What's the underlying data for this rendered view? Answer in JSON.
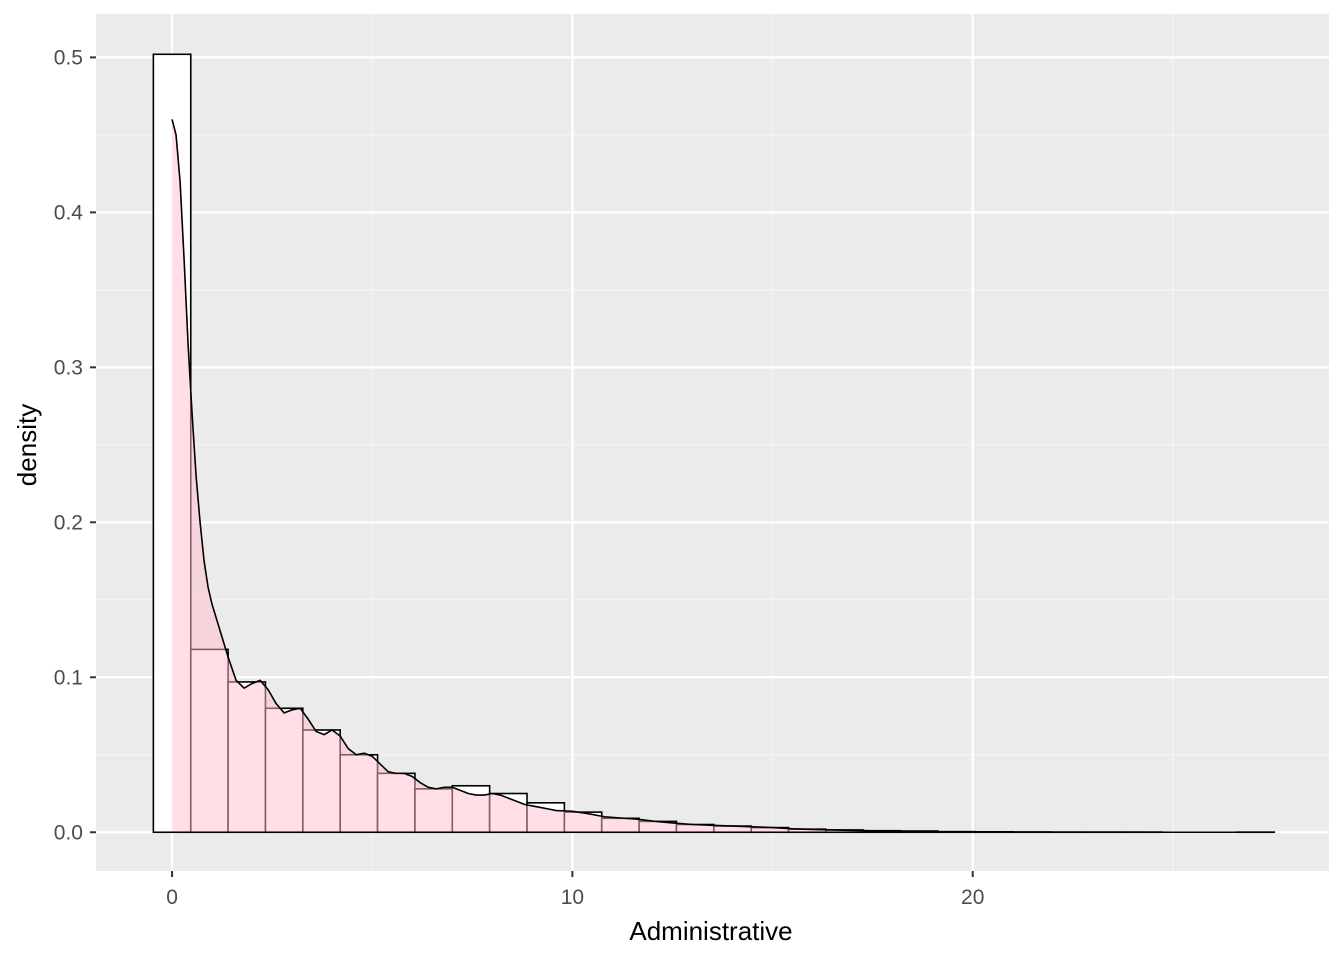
{
  "chart_data": {
    "type": "bar",
    "xlabel": "Administrative",
    "ylabel": "density",
    "xlim": [
      -1.9,
      28.9
    ],
    "ylim": [
      -0.025,
      0.528
    ],
    "x_ticks": [
      0,
      10,
      20
    ],
    "x_tick_labels": [
      "0",
      "10",
      "20"
    ],
    "x_minor_ticks": [
      5,
      15,
      25
    ],
    "y_ticks": [
      0.0,
      0.1,
      0.2,
      0.3,
      0.4,
      0.5
    ],
    "y_tick_labels": [
      "0.0",
      "0.1",
      "0.2",
      "0.3",
      "0.4",
      "0.5"
    ],
    "y_minor_ticks": [
      0.05,
      0.15,
      0.25,
      0.35,
      0.45
    ],
    "grid": true,
    "histogram": {
      "bin_width": 0.9333,
      "bins": [
        {
          "x0": -0.467,
          "x1": 0.467,
          "density": 0.502
        },
        {
          "x0": 0.467,
          "x1": 1.4,
          "density": 0.118
        },
        {
          "x0": 1.4,
          "x1": 2.333,
          "density": 0.097
        },
        {
          "x0": 2.333,
          "x1": 3.267,
          "density": 0.08
        },
        {
          "x0": 3.267,
          "x1": 4.2,
          "density": 0.066
        },
        {
          "x0": 4.2,
          "x1": 5.133,
          "density": 0.05
        },
        {
          "x0": 5.133,
          "x1": 6.067,
          "density": 0.038
        },
        {
          "x0": 6.067,
          "x1": 7.0,
          "density": 0.028
        },
        {
          "x0": 7.0,
          "x1": 7.933,
          "density": 0.03
        },
        {
          "x0": 7.933,
          "x1": 8.867,
          "density": 0.025
        },
        {
          "x0": 8.867,
          "x1": 9.8,
          "density": 0.019
        },
        {
          "x0": 9.8,
          "x1": 10.733,
          "density": 0.013
        },
        {
          "x0": 10.733,
          "x1": 11.667,
          "density": 0.009
        },
        {
          "x0": 11.667,
          "x1": 12.6,
          "density": 0.007
        },
        {
          "x0": 12.6,
          "x1": 13.533,
          "density": 0.005
        },
        {
          "x0": 13.533,
          "x1": 14.467,
          "density": 0.004
        },
        {
          "x0": 14.467,
          "x1": 15.4,
          "density": 0.003
        },
        {
          "x0": 15.4,
          "x1": 16.333,
          "density": 0.002
        },
        {
          "x0": 16.333,
          "x1": 17.267,
          "density": 0.0015
        },
        {
          "x0": 17.267,
          "x1": 18.2,
          "density": 0.001
        },
        {
          "x0": 18.2,
          "x1": 19.133,
          "density": 0.0008
        },
        {
          "x0": 19.133,
          "x1": 20.067,
          "density": 0.0004
        },
        {
          "x0": 20.067,
          "x1": 21.0,
          "density": 0.0003
        },
        {
          "x0": 21.0,
          "x1": 21.933,
          "density": 0.0002
        },
        {
          "x0": 21.933,
          "x1": 22.867,
          "density": 0.0001
        },
        {
          "x0": 22.867,
          "x1": 23.8,
          "density": 0.0001
        },
        {
          "x0": 23.8,
          "x1": 24.733,
          "density": 0.0001
        },
        {
          "x0": 24.733,
          "x1": 25.667,
          "density": 0.0
        },
        {
          "x0": 25.667,
          "x1": 26.6,
          "density": 0.0
        },
        {
          "x0": 26.6,
          "x1": 27.533,
          "density": 0.0001
        }
      ]
    },
    "density_curve": {
      "fill_color": "#ffc0cb",
      "fill_opacity": 0.5,
      "points": [
        [
          0.0,
          0.46
        ],
        [
          0.1,
          0.45
        ],
        [
          0.2,
          0.42
        ],
        [
          0.3,
          0.37
        ],
        [
          0.4,
          0.315
        ],
        [
          0.5,
          0.27
        ],
        [
          0.6,
          0.23
        ],
        [
          0.7,
          0.2
        ],
        [
          0.8,
          0.175
        ],
        [
          0.9,
          0.158
        ],
        [
          1.0,
          0.147
        ],
        [
          1.2,
          0.13
        ],
        [
          1.4,
          0.113
        ],
        [
          1.6,
          0.098
        ],
        [
          1.8,
          0.093
        ],
        [
          2.0,
          0.096
        ],
        [
          2.2,
          0.098
        ],
        [
          2.4,
          0.092
        ],
        [
          2.6,
          0.083
        ],
        [
          2.8,
          0.077
        ],
        [
          3.0,
          0.079
        ],
        [
          3.2,
          0.08
        ],
        [
          3.4,
          0.073
        ],
        [
          3.6,
          0.065
        ],
        [
          3.8,
          0.063
        ],
        [
          4.0,
          0.066
        ],
        [
          4.2,
          0.062
        ],
        [
          4.4,
          0.054
        ],
        [
          4.6,
          0.05
        ],
        [
          4.8,
          0.051
        ],
        [
          5.0,
          0.049
        ],
        [
          5.2,
          0.044
        ],
        [
          5.4,
          0.039
        ],
        [
          5.6,
          0.038
        ],
        [
          5.8,
          0.038
        ],
        [
          6.0,
          0.036
        ],
        [
          6.2,
          0.032
        ],
        [
          6.4,
          0.029
        ],
        [
          6.6,
          0.028
        ],
        [
          6.8,
          0.029
        ],
        [
          7.0,
          0.029
        ],
        [
          7.2,
          0.027
        ],
        [
          7.4,
          0.025
        ],
        [
          7.6,
          0.024
        ],
        [
          7.8,
          0.024
        ],
        [
          8.0,
          0.025
        ],
        [
          8.2,
          0.024
        ],
        [
          8.4,
          0.022
        ],
        [
          8.6,
          0.02
        ],
        [
          8.8,
          0.018
        ],
        [
          9.0,
          0.017
        ],
        [
          9.2,
          0.016
        ],
        [
          9.4,
          0.015
        ],
        [
          9.6,
          0.014
        ],
        [
          9.8,
          0.0138
        ],
        [
          10.0,
          0.0135
        ],
        [
          10.4,
          0.012
        ],
        [
          10.8,
          0.01
        ],
        [
          11.2,
          0.0092
        ],
        [
          11.6,
          0.0085
        ],
        [
          12.0,
          0.0072
        ],
        [
          12.5,
          0.006
        ],
        [
          13.0,
          0.005
        ],
        [
          13.5,
          0.0045
        ],
        [
          14.0,
          0.004
        ],
        [
          14.5,
          0.0035
        ],
        [
          15.0,
          0.003
        ],
        [
          15.5,
          0.0022
        ],
        [
          16.0,
          0.0018
        ],
        [
          16.5,
          0.0015
        ],
        [
          17.0,
          0.0012
        ],
        [
          17.5,
          0.0009
        ],
        [
          18.0,
          0.0007
        ],
        [
          18.5,
          0.0004
        ],
        [
          19.0,
          0.0002
        ],
        [
          20.0,
          0.0001
        ],
        [
          21.0,
          5e-05
        ],
        [
          22.0,
          4e-05
        ],
        [
          23.0,
          3e-05
        ],
        [
          24.0,
          2e-05
        ],
        [
          25.0,
          1e-05
        ],
        [
          26.0,
          1e-05
        ],
        [
          27.0,
          1e-05
        ],
        [
          27.5,
          1e-05
        ]
      ]
    },
    "colors": {
      "panel_background": "#ebebeb",
      "grid_major": "#ffffff",
      "grid_minor": "#f5f5f5",
      "bar_outline": "#000000",
      "bar_fill": "#ffffff",
      "density_line": "#000000",
      "tick_text": "#4d4d4d",
      "axis_text": "#000000"
    }
  }
}
